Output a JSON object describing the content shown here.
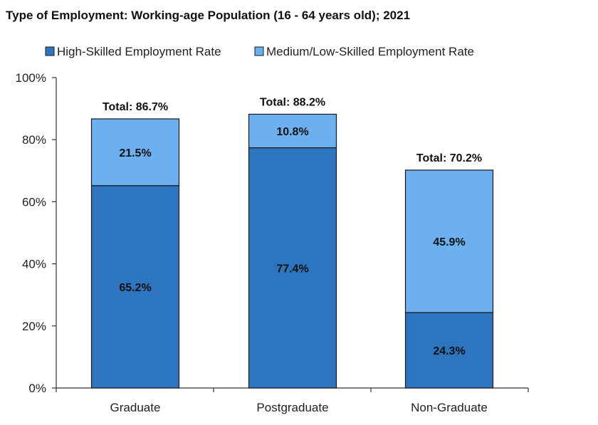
{
  "chart_data": {
    "type": "bar",
    "stacked": true,
    "title": "Type of Employment: Working-age Population (16 - 64 years old); 2021",
    "categories": [
      "Graduate",
      "Postgraduate",
      "Non-Graduate"
    ],
    "series": [
      {
        "name": "High-Skilled Employment Rate",
        "color": "#2e75c0",
        "values": [
          65.2,
          77.4,
          24.3
        ]
      },
      {
        "name": "Medium/Low-Skilled Employment Rate",
        "color": "#6db0f0",
        "values": [
          21.5,
          10.8,
          45.9
        ]
      }
    ],
    "segment_labels": [
      [
        "65.2%",
        "77.4%",
        "24.3%"
      ],
      [
        "21.5%",
        "10.8%",
        "45.9%"
      ]
    ],
    "totals": [
      86.7,
      88.2,
      70.2
    ],
    "total_labels": [
      "Total: 86.7%",
      "Total: 88.2%",
      "Total: 70.2%"
    ],
    "ylim": [
      0,
      100
    ],
    "yticks": [
      0,
      20,
      40,
      60,
      80,
      100
    ],
    "ytick_labels": [
      "0%",
      "20%",
      "40%",
      "60%",
      "80%",
      "100%"
    ],
    "xlabel": "",
    "ylabel": "",
    "legend_position": "top",
    "grid": false
  }
}
